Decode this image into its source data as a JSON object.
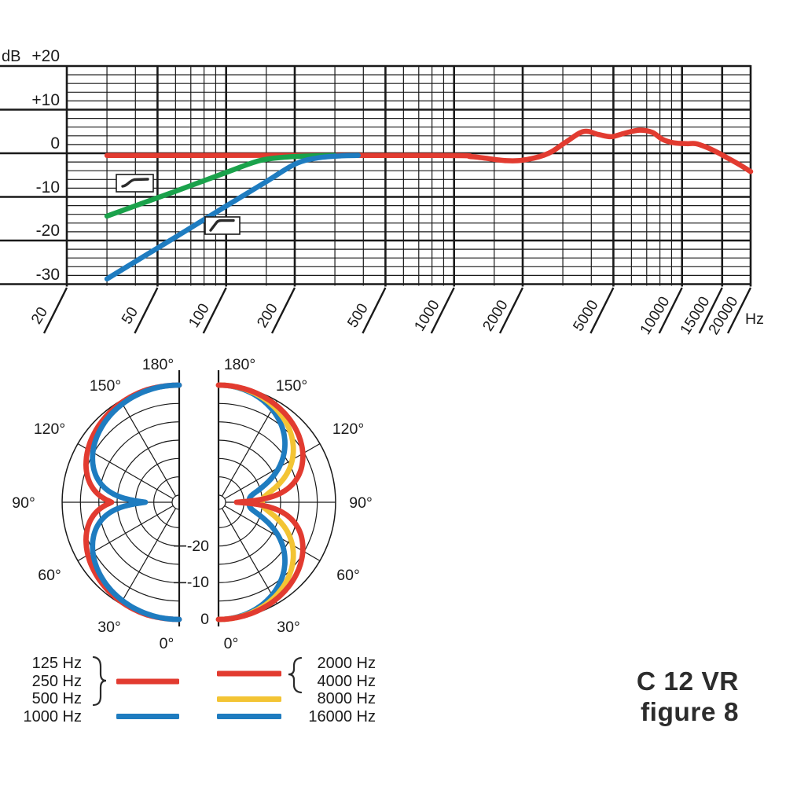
{
  "title": {
    "line1": "C 12 VR",
    "line2": "figure 8"
  },
  "colors": {
    "red": "#e23b30",
    "green": "#1aa24b",
    "blue": "#1e7cc0",
    "yellow": "#f3c434",
    "grid": "#1a1a1a",
    "text": "#1b1b1b"
  },
  "chart_data": [
    {
      "type": "line",
      "name": "frequency-response",
      "xlabel": "Hz",
      "ylabel": "dB",
      "x_scale": "log",
      "xlim": [
        20,
        20000
      ],
      "ylim": [
        -30,
        20
      ],
      "grid": true,
      "y_ticks": [
        {
          "label": "+20",
          "db": 20
        },
        {
          "label": "+10",
          "db": 10
        },
        {
          "label": "0",
          "db": 0
        },
        {
          "label": "-10",
          "db": -10
        },
        {
          "label": "-20",
          "db": -20
        },
        {
          "label": "-30",
          "db": -30
        }
      ],
      "y_minor_step_db": 2,
      "x_ticks": [
        {
          "label": "20",
          "f": 20
        },
        {
          "label": "50",
          "f": 50
        },
        {
          "label": "100",
          "f": 100
        },
        {
          "label": "200",
          "f": 200
        },
        {
          "label": "500",
          "f": 500
        },
        {
          "label": "1000",
          "f": 1000
        },
        {
          "label": "2000",
          "f": 2000
        },
        {
          "label": "5000",
          "f": 5000
        },
        {
          "label": "10000",
          "f": 10000
        },
        {
          "label": "15000",
          "f": 15000
        },
        {
          "label": "20000",
          "f": 20000
        }
      ],
      "x_minor": [
        30,
        40,
        60,
        70,
        80,
        90,
        150,
        300,
        400,
        600,
        700,
        800,
        900,
        1500,
        3000,
        4000,
        6000,
        7000,
        8000,
        9000
      ],
      "series": [
        {
          "name": "frequency response (flat)",
          "color": "red",
          "points": [
            [
              30,
              -0.5
            ],
            [
              800,
              -0.5
            ],
            [
              1200,
              -0.8
            ],
            [
              1700,
              -1.7
            ],
            [
              2100,
              -1.4
            ],
            [
              2600,
              0
            ],
            [
              3100,
              2.6
            ],
            [
              3700,
              5
            ],
            [
              4300,
              4.3
            ],
            [
              4900,
              3.8
            ],
            [
              5600,
              4.6
            ],
            [
              6500,
              5.3
            ],
            [
              7400,
              4.8
            ],
            [
              8200,
              3.2
            ],
            [
              9200,
              2.4
            ],
            [
              10500,
              2.2
            ],
            [
              11500,
              2.2
            ],
            [
              12900,
              1.3
            ],
            [
              14300,
              0.2
            ],
            [
              16000,
              -1.2
            ],
            [
              18000,
              -2.7
            ],
            [
              20000,
              -4.2
            ]
          ]
        },
        {
          "name": "bass cut gentle (6 dB/oct)",
          "color": "green",
          "points": [
            [
              30,
              -14.4
            ],
            [
              60,
              -8.7
            ],
            [
              100,
              -4.4
            ],
            [
              140,
              -1.7
            ],
            [
              180,
              -0.9
            ],
            [
              240,
              -0.6
            ],
            [
              300,
              -0.5
            ]
          ]
        },
        {
          "name": "bass cut steep (12 dB/oct)",
          "color": "blue",
          "points": [
            [
              30,
              -28.8
            ],
            [
              60,
              -19.2
            ],
            [
              100,
              -12.1
            ],
            [
              150,
              -6.5
            ],
            [
              200,
              -2.5
            ],
            [
              250,
              -1.1
            ],
            [
              320,
              -0.6
            ],
            [
              380,
              -0.5
            ]
          ]
        }
      ],
      "filter_icons": [
        {
          "name": "bass-cut-gentle-filter-icon",
          "style": "gentle"
        },
        {
          "name": "bass-cut-steep-filter-icon",
          "style": "steep"
        }
      ]
    },
    {
      "type": "polar",
      "name": "polar-pattern-figure-8",
      "rings_db": [
        0,
        -5,
        -10,
        -15,
        -20,
        -25
      ],
      "ring_labels": [
        {
          "label": "0",
          "db": 0
        },
        {
          "label": "-10",
          "db": -10
        },
        {
          "label": "-20",
          "db": -20
        }
      ],
      "angle_labels": [
        "180°",
        "150°",
        "120°",
        "90°",
        "60°",
        "30°",
        "0°"
      ],
      "plots": [
        {
          "side": "left",
          "series": [
            {
              "label": "125 / 250 / 500 Hz",
              "color": "red",
              "lobe_exponent": 0.6,
              "null_depth_db": -13.5
            },
            {
              "label": "1000 Hz",
              "color": "blue",
              "lobe_exponent": 0.8,
              "null_depth_db": -22.7
            }
          ]
        },
        {
          "side": "right",
          "series": [
            {
              "label": "16000 Hz",
              "color": "blue",
              "lobe_exponent": 2.2,
              "null_depth_db": -23.5
            },
            {
              "label": "8000 Hz",
              "color": "yellow",
              "lobe_exponent": 1.5,
              "null_depth_db": -20
            },
            {
              "label": "2000 / 4000 Hz",
              "color": "red",
              "lobe_exponent": 0.9,
              "null_depth_db": -27
            }
          ]
        }
      ]
    }
  ],
  "axis_units": {
    "y": "dB",
    "x": "Hz"
  },
  "legend": {
    "left_labels": [
      "125 Hz",
      "250 Hz",
      "500 Hz",
      "1000 Hz"
    ],
    "left_group_color": "red",
    "left_single_color": "blue",
    "right_labels": [
      "2000 Hz",
      "4000 Hz",
      "8000 Hz",
      "16000 Hz"
    ],
    "right_group_color": "red",
    "right_row3_color": "yellow",
    "right_row4_color": "blue"
  }
}
